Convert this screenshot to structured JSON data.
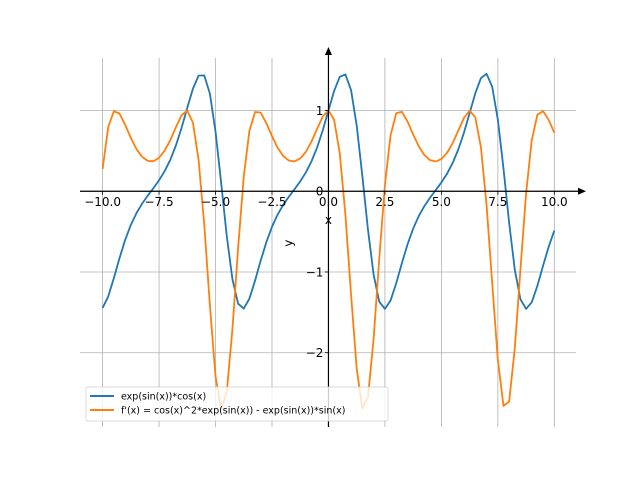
{
  "chart_data": {
    "type": "line",
    "title": "",
    "xlabel": "x",
    "ylabel": "y",
    "xlim": [
      -11.0,
      10.96
    ],
    "ylim": [
      -2.92,
      1.65
    ],
    "grid": true,
    "legend_position": "lower-left",
    "xticks": [
      -10.0,
      -7.5,
      -5.0,
      -2.5,
      0.0,
      2.5,
      5.0,
      7.5,
      10.0
    ],
    "xtick_labels": [
      "−10.0",
      "−7.5",
      "−5.0",
      "−2.5",
      "0.0",
      "2.5",
      "5.0",
      "7.5",
      "10.0"
    ],
    "yticks": [
      -2,
      -1,
      0,
      1
    ],
    "ytick_labels": [
      "−2",
      "−1",
      "0",
      "1"
    ],
    "x": [
      -10,
      -9.75,
      -9.5,
      -9.25,
      -9,
      -8.75,
      -8.5,
      -8.25,
      -8,
      -7.75,
      -7.5,
      -7.25,
      -7,
      -6.75,
      -6.5,
      -6.25,
      -6,
      -5.75,
      -5.5,
      -5.25,
      -5,
      -4.75,
      -4.5,
      -4.25,
      -4,
      -3.75,
      -3.5,
      -3.25,
      -3,
      -2.75,
      -2.5,
      -2.25,
      -2,
      -1.75,
      -1.5,
      -1.25,
      -1,
      -0.75,
      -0.5,
      -0.25,
      0,
      0.25,
      0.5,
      0.75,
      1,
      1.25,
      1.5,
      1.75,
      2,
      2.25,
      2.5,
      2.75,
      3,
      3.25,
      3.5,
      3.75,
      4,
      4.25,
      4.5,
      4.75,
      5,
      5.25,
      5.5,
      5.75,
      6,
      6.25,
      6.5,
      6.75,
      7,
      7.25,
      7.5,
      7.75,
      8,
      8.25,
      8.5,
      8.75,
      9,
      9.25,
      9.5,
      9.75,
      10
    ],
    "series": [
      {
        "name": "exp(sin(x))*cos(x)",
        "color": "#1f77b4",
        "values": [
          -1.4457,
          -1.3043,
          -1.075,
          -0.8276,
          -0.6034,
          -0.418,
          -0.2709,
          -0.1536,
          -0.0541,
          0.0384,
          0.1357,
          0.2496,
          0.3908,
          0.5694,
          0.7876,
          1.0332,
          1.2698,
          1.4317,
          1.4352,
          1.2091,
          0.7401,
          0.1021,
          -0.5603,
          -1.0918,
          -1.3932,
          -1.4533,
          -1.33,
          -1.1077,
          -0.8597,
          -0.631,
          -0.4403,
          -0.2885,
          -0.1676,
          -0.0666,
          0.0261,
          0.1221,
          0.2329,
          0.3701,
          0.5434,
          0.7565,
          1.0,
          1.2409,
          1.4174,
          1.4466,
          1.2534,
          0.8145,
          0.1918,
          -0.4767,
          -1.033,
          -1.3677,
          -1.4575,
          -1.3539,
          -1.14,
          -0.8921,
          -0.6594,
          -0.4633,
          -0.3066,
          -0.1823,
          -0.0793,
          0.0138,
          0.1087,
          0.217,
          0.35,
          0.518,
          0.7261,
          0.9667,
          1.211,
          1.4005,
          1.4543,
          1.294,
          0.8855,
          0.2803,
          -0.3913,
          -0.9717,
          -1.3378,
          -1.4584,
          -1.3758,
          -1.1719,
          -0.9251,
          -0.6884,
          -0.487
        ]
      },
      {
        "name": "f'(x) = cos(x)^2*exp(sin(x)) - exp(sin(x))*sin(x)",
        "color": "#ff7f0e",
        "values": [
          0.2758,
          0.7961,
          0.991,
          0.9612,
          0.8226,
          0.6609,
          0.5224,
          0.4261,
          0.3757,
          0.3718,
          0.4142,
          0.5032,
          0.6352,
          0.7954,
          0.9426,
          0.9983,
          0.8497,
          0.388,
          -0.4115,
          -1.4081,
          -2.2916,
          -2.7107,
          -2.48,
          -1.7033,
          -0.7026,
          0.1803,
          0.7473,
          0.9807,
          0.9736,
          0.8438,
          0.6817,
          0.5386,
          0.436,
          0.3797,
          0.3697,
          0.4058,
          0.4886,
          0.6155,
          0.7737,
          0.9262,
          1.0,
          0.8855,
          0.4697,
          -0.2891,
          -1.275,
          -2.1946,
          -2.6912,
          -2.5473,
          -1.8274,
          -0.835,
          0.0788,
          0.6923,
          0.9661,
          0.984,
          0.8645,
          0.7029,
          0.5554,
          0.447,
          0.3845,
          0.3684,
          0.3984,
          0.475,
          0.5964,
          0.7519,
          0.9084,
          0.9983,
          0.9159,
          0.545,
          -0.1709,
          -1.138,
          -2.0896,
          -2.6593,
          -2.6041,
          -1.9449,
          -0.9691,
          -0.0284,
          0.6312,
          0.9471,
          0.9922,
          0.8844,
          0.7244
        ]
      }
    ]
  }
}
